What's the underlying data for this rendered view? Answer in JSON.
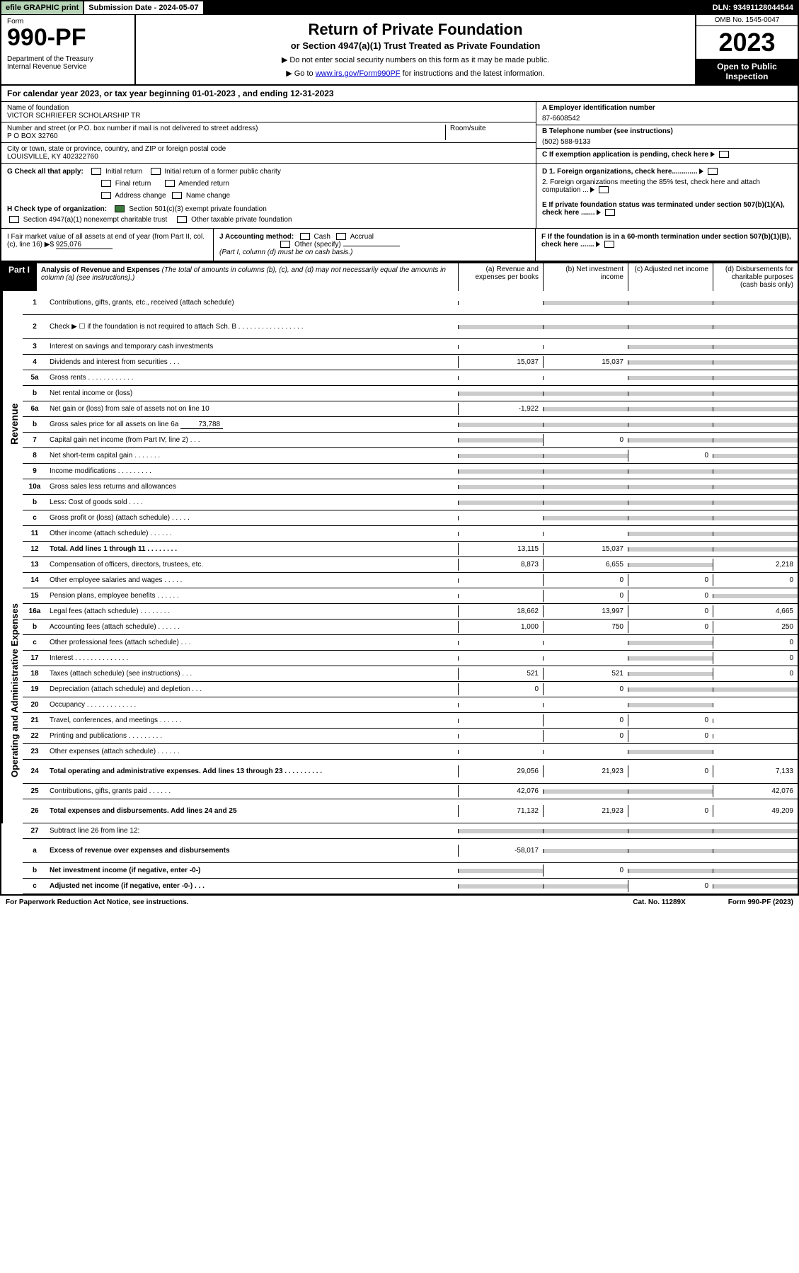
{
  "topbar": {
    "efile": "efile GRAPHIC print",
    "subdate": "Submission Date - 2024-05-07",
    "dln": "DLN: 93491128044544"
  },
  "header": {
    "form_label": "Form",
    "form_num": "990-PF",
    "dept": "Department of the Treasury\nInternal Revenue Service",
    "title": "Return of Private Foundation",
    "subtitle": "or Section 4947(a)(1) Trust Treated as Private Foundation",
    "note1": "▶ Do not enter social security numbers on this form as it may be made public.",
    "note2_pre": "▶ Go to ",
    "note2_link": "www.irs.gov/Form990PF",
    "note2_post": " for instructions and the latest information.",
    "omb": "OMB No. 1545-0047",
    "year": "2023",
    "open": "Open to Public Inspection"
  },
  "calyear": "For calendar year 2023, or tax year beginning 01-01-2023                         , and ending 12-31-2023",
  "id": {
    "name_lbl": "Name of foundation",
    "name": "VICTOR SCHRIEFER SCHOLARSHIP TR",
    "addr_lbl": "Number and street (or P.O. box number if mail is not delivered to street address)",
    "room_lbl": "Room/suite",
    "addr": "P O BOX 32760",
    "city_lbl": "City or town, state or province, country, and ZIP or foreign postal code",
    "city": "LOUISVILLE, KY  402322760",
    "ein_lbl": "A Employer identification number",
    "ein": "87-6608542",
    "tel_lbl": "B Telephone number (see instructions)",
    "tel": "(502) 588-9133",
    "c_lbl": "C If exemption application is pending, check here",
    "d1": "D 1. Foreign organizations, check here.............",
    "d2": "   2. Foreign organizations meeting the 85% test, check here and attach computation ...",
    "e_lbl": "E  If private foundation status was terminated under section 507(b)(1)(A), check here .......",
    "f_lbl": "F  If the foundation is in a 60-month termination under section 507(b)(1)(B), check here ......."
  },
  "g": {
    "label": "G Check all that apply:",
    "opts": [
      "Initial return",
      "Initial return of a former public charity",
      "Final return",
      "Amended return",
      "Address change",
      "Name change"
    ]
  },
  "h": {
    "label": "H Check type of organization:",
    "opt1": "Section 501(c)(3) exempt private foundation",
    "opt2": "Section 4947(a)(1) nonexempt charitable trust",
    "opt3": "Other taxable private foundation"
  },
  "i": {
    "label": "I Fair market value of all assets at end of year (from Part II, col. (c), line 16) ▶$",
    "value": "925,076"
  },
  "j": {
    "label": "J Accounting method:",
    "cash": "Cash",
    "accrual": "Accrual",
    "other": "Other (specify)",
    "note": "(Part I, column (d) must be on cash basis.)"
  },
  "part1": {
    "label": "Part I",
    "title": "Analysis of Revenue and Expenses",
    "sub": " (The total of amounts in columns (b), (c), and (d) may not necessarily equal the amounts in column (a) (see instructions).)",
    "cols": {
      "a": "(a) Revenue and expenses per books",
      "b": "(b) Net investment income",
      "c": "(c) Adjusted net income",
      "d": "(d) Disbursements for charitable purposes (cash basis only)"
    }
  },
  "spines": {
    "rev": "Revenue",
    "exp": "Operating and Administrative Expenses"
  },
  "lines": {
    "1": {
      "n": "1",
      "d": "Contributions, gifts, grants, etc., received (attach schedule)"
    },
    "2": {
      "n": "2",
      "d": "Check ▶ ☐ if the foundation is not required to attach Sch. B   .   .   .   .   .   .   .   .   .   .   .   .   .   .   .   .   ."
    },
    "3": {
      "n": "3",
      "d": "Interest on savings and temporary cash investments"
    },
    "4": {
      "n": "4",
      "d": "Dividends and interest from securities   .   .   .",
      "a": "15,037",
      "b": "15,037"
    },
    "5a": {
      "n": "5a",
      "d": "Gross rents   .   .   .   .   .   .   .   .   .   .   .   ."
    },
    "5b": {
      "n": "b",
      "d": "Net rental income or (loss)"
    },
    "6a": {
      "n": "6a",
      "d": "Net gain or (loss) from sale of assets not on line 10",
      "a": "-1,922"
    },
    "6b": {
      "n": "b",
      "d": "Gross sales price for all assets on line 6a",
      "inline": "73,788"
    },
    "7": {
      "n": "7",
      "d": "Capital gain net income (from Part IV, line 2)   .   .   .",
      "b": "0"
    },
    "8": {
      "n": "8",
      "d": "Net short-term capital gain   .   .   .   .   .   .   .",
      "c": "0"
    },
    "9": {
      "n": "9",
      "d": "Income modifications   .   .   .   .   .   .   .   .   ."
    },
    "10a": {
      "n": "10a",
      "d": "Gross sales less returns and allowances"
    },
    "10b": {
      "n": "b",
      "d": "Less: Cost of goods sold   .   .   .   ."
    },
    "10c": {
      "n": "c",
      "d": "Gross profit or (loss) (attach schedule)   .   .   .   .   ."
    },
    "11": {
      "n": "11",
      "d": "Other income (attach schedule)   .   .   .   .   .   ."
    },
    "12": {
      "n": "12",
      "d": "Total. Add lines 1 through 11   .   .   .   .   .   .   .   .",
      "bold": true,
      "a": "13,115",
      "b": "15,037"
    },
    "13": {
      "n": "13",
      "d": "Compensation of officers, directors, trustees, etc.",
      "a": "8,873",
      "b": "6,655",
      "d4": "2,218"
    },
    "14": {
      "n": "14",
      "d": "Other employee salaries and wages   .   .   .   .   .",
      "b": "0",
      "c": "0",
      "d4": "0"
    },
    "15": {
      "n": "15",
      "d": "Pension plans, employee benefits   .   .   .   .   .   .",
      "b": "0",
      "c": "0"
    },
    "16a": {
      "n": "16a",
      "d": "Legal fees (attach schedule)   .   .   .   .   .   .   .   .",
      "a": "18,662",
      "b": "13,997",
      "c": "0",
      "d4": "4,665"
    },
    "16b": {
      "n": "b",
      "d": "Accounting fees (attach schedule)   .   .   .   .   .   .",
      "a": "1,000",
      "b": "750",
      "c": "0",
      "d4": "250"
    },
    "16c": {
      "n": "c",
      "d": "Other professional fees (attach schedule)   .   .   .",
      "d4": "0"
    },
    "17": {
      "n": "17",
      "d": "Interest   .   .   .   .   .   .   .   .   .   .   .   .   .   .",
      "d4": "0"
    },
    "18": {
      "n": "18",
      "d": "Taxes (attach schedule) (see instructions)   .   .   .",
      "a": "521",
      "b": "521",
      "d4": "0"
    },
    "19": {
      "n": "19",
      "d": "Depreciation (attach schedule) and depletion   .   .   .",
      "a": "0",
      "b": "0"
    },
    "20": {
      "n": "20",
      "d": "Occupancy   .   .   .   .   .   .   .   .   .   .   .   .   ."
    },
    "21": {
      "n": "21",
      "d": "Travel, conferences, and meetings   .   .   .   .   .   .",
      "b": "0",
      "c": "0"
    },
    "22": {
      "n": "22",
      "d": "Printing and publications   .   .   .   .   .   .   .   .   .",
      "b": "0",
      "c": "0"
    },
    "23": {
      "n": "23",
      "d": "Other expenses (attach schedule)   .   .   .   .   .   ."
    },
    "24": {
      "n": "24",
      "d": "Total operating and administrative expenses. Add lines 13 through 23   .   .   .   .   .   .   .   .   .   .",
      "bold": true,
      "a": "29,056",
      "b": "21,923",
      "c": "0",
      "d4": "7,133"
    },
    "25": {
      "n": "25",
      "d": "Contributions, gifts, grants paid   .   .   .   .   .   .",
      "a": "42,076",
      "d4": "42,076"
    },
    "26": {
      "n": "26",
      "d": "Total expenses and disbursements. Add lines 24 and 25",
      "bold": true,
      "a": "71,132",
      "b": "21,923",
      "c": "0",
      "d4": "49,209"
    },
    "27": {
      "n": "27",
      "d": "Subtract line 26 from line 12:"
    },
    "27a": {
      "n": "a",
      "d": "Excess of revenue over expenses and disbursements",
      "bold": true,
      "a": "-58,017"
    },
    "27b": {
      "n": "b",
      "d": "Net investment income (if negative, enter -0-)",
      "bold": true,
      "b": "0"
    },
    "27c": {
      "n": "c",
      "d": "Adjusted net income (if negative, enter -0-)   .   .   .",
      "bold": true,
      "c": "0"
    }
  },
  "footer": {
    "left": "For Paperwork Reduction Act Notice, see instructions.",
    "mid": "Cat. No. 11289X",
    "right": "Form 990-PF (2023)"
  }
}
